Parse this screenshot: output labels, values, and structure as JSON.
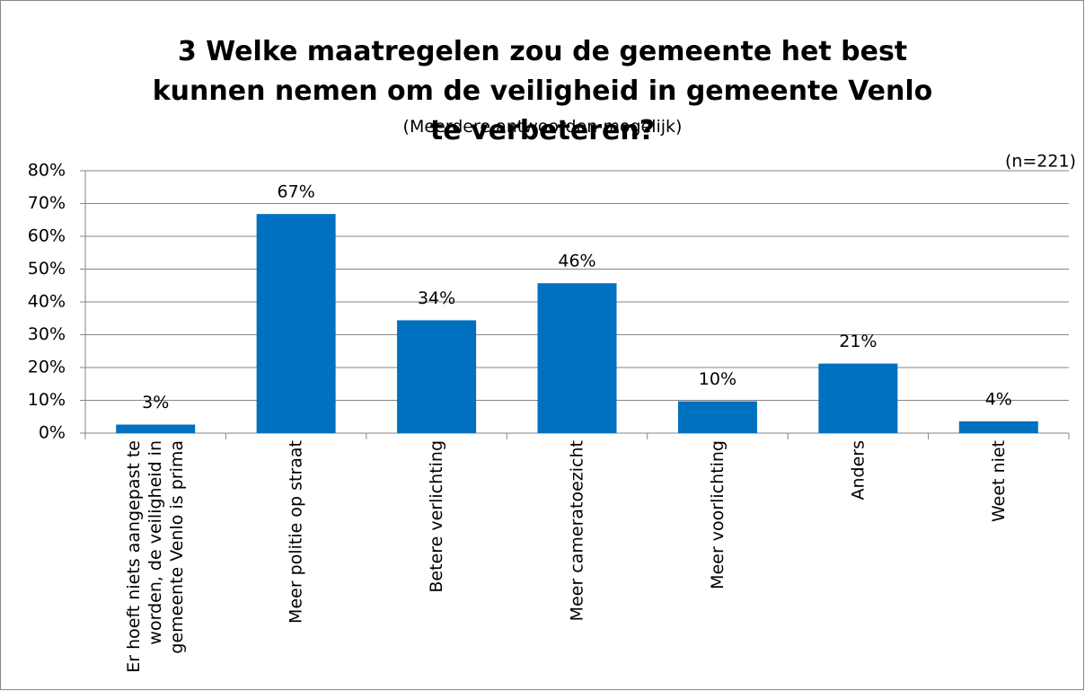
{
  "chart_data": {
    "type": "bar",
    "title": "3 Welke maatregelen zou de gemeente het best kunnen nemen om de veiligheid in gemeente Venlo te verbeteren?",
    "subtitle": "(Meerdere antwoorden mogelijk)",
    "annotation": "(n=221)",
    "categories": [
      "Er hoeft niets aangepast te worden, de veiligheid in gemeente Venlo is prima",
      "Meer politie op straat",
      "Betere verlichting",
      "Meer cameratoezicht",
      "Meer voorlichting",
      "Anders",
      "Weet niet"
    ],
    "values": [
      2.6,
      66.8,
      34.4,
      45.7,
      9.7,
      21.2,
      3.6
    ],
    "value_labels": [
      "3%",
      "67%",
      "34%",
      "46%",
      "10%",
      "21%",
      "4%"
    ],
    "color": "#0070c0",
    "ylim": [
      0,
      80
    ],
    "yticks": [
      {
        "value": 0,
        "label": "0%"
      },
      {
        "value": 10,
        "label": "10%"
      },
      {
        "value": 20,
        "label": "20%"
      },
      {
        "value": 30,
        "label": "30%"
      },
      {
        "value": 40,
        "label": "40%"
      },
      {
        "value": 50,
        "label": "50%"
      },
      {
        "value": 60,
        "label": "60%"
      },
      {
        "value": 70,
        "label": "70%"
      },
      {
        "value": 80,
        "label": "80%"
      }
    ],
    "grid": true
  }
}
